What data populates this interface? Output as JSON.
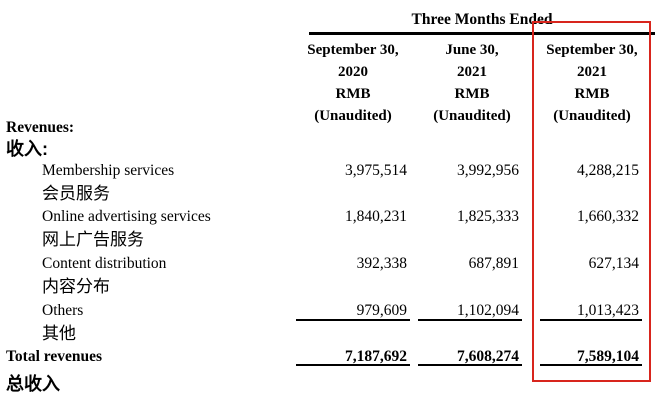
{
  "table": {
    "title": "Three Months Ended",
    "columns": [
      {
        "line1": "September 30,",
        "line2": "2020",
        "line3": "RMB",
        "line4": "(Unaudited)"
      },
      {
        "line1": "June 30,",
        "line2": "2021",
        "line3": "RMB",
        "line4": "(Unaudited)"
      },
      {
        "line1": "September 30,",
        "line2": "2021",
        "line3": "RMB",
        "line4": "(Unaudited)"
      }
    ],
    "section": {
      "en": "Revenues:",
      "zh": "收入:"
    },
    "rows": [
      {
        "en": "Membership services",
        "zh": "会员服务",
        "values": [
          "3,975,514",
          "3,992,956",
          "4,288,215"
        ]
      },
      {
        "en": "Online advertising services",
        "zh": "网上广告服务",
        "values": [
          "1,840,231",
          "1,825,333",
          "1,660,332"
        ]
      },
      {
        "en": "Content distribution",
        "zh": "内容分布",
        "values": [
          "392,338",
          "687,891",
          "627,134"
        ]
      },
      {
        "en": "Others",
        "zh": "其他",
        "values": [
          "979,609",
          "1,102,094",
          "1,013,423"
        ]
      }
    ],
    "total": {
      "en": "Total revenues",
      "zh": "总收入",
      "values": [
        "7,187,692",
        "7,608,274",
        "7,589,104"
      ]
    }
  },
  "annotation": {
    "highlight_color": "#d8251d",
    "highlighted_column": "September 30, 2021"
  }
}
